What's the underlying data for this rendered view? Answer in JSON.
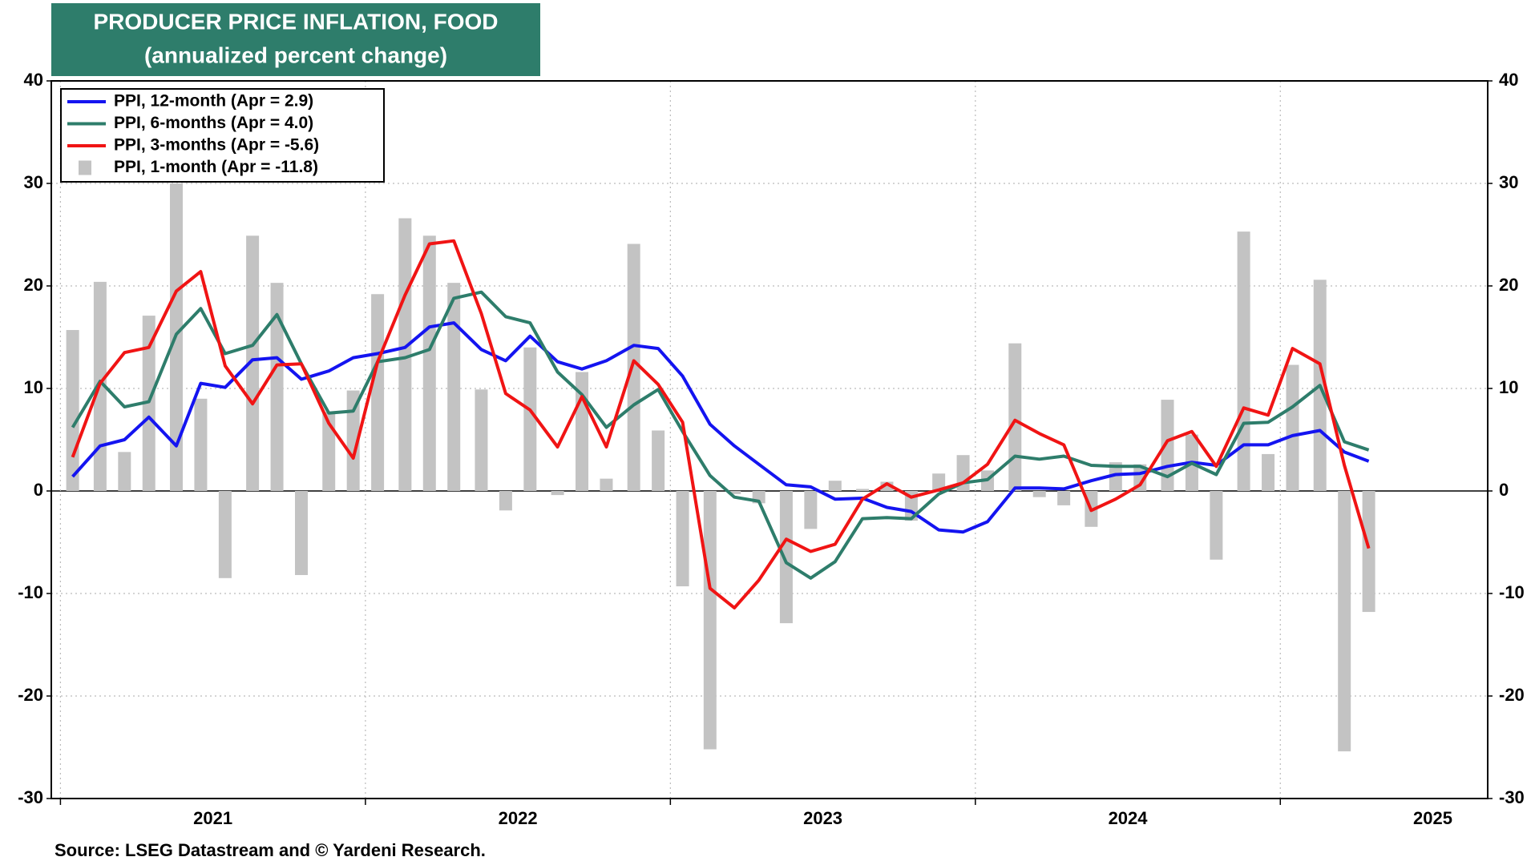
{
  "chart_data": {
    "type": "line",
    "title": "PRODUCER PRICE INFLATION, FOOD",
    "subtitle": "(annualized percent change)",
    "source": "Source: LSEG Datastream and © Yardeni Research.",
    "legend": "top-left",
    "grid": true,
    "xlim": [
      2020.97,
      2025.68
    ],
    "xticks": [
      {
        "value": 2021.5,
        "label": "2021"
      },
      {
        "value": 2022.5,
        "label": "2022"
      },
      {
        "value": 2023.5,
        "label": "2023"
      },
      {
        "value": 2024.5,
        "label": "2024"
      },
      {
        "value": 2025.5,
        "label": "2025"
      }
    ],
    "ylim": [
      -30,
      40
    ],
    "yticks": [
      40,
      30,
      20,
      10,
      0,
      -10,
      -20,
      -30
    ],
    "x": [
      2021.04,
      2021.13,
      2021.21,
      2021.29,
      2021.38,
      2021.46,
      2021.54,
      2021.63,
      2021.71,
      2021.79,
      2021.88,
      2021.96,
      2022.04,
      2022.13,
      2022.21,
      2022.29,
      2022.38,
      2022.46,
      2022.54,
      2022.63,
      2022.71,
      2022.79,
      2022.88,
      2022.96,
      2023.04,
      2023.13,
      2023.21,
      2023.29,
      2023.38,
      2023.46,
      2023.54,
      2023.63,
      2023.71,
      2023.79,
      2023.88,
      2023.96,
      2024.04,
      2024.13,
      2024.21,
      2024.29,
      2024.38,
      2024.46,
      2024.54,
      2024.63,
      2024.71,
      2024.79,
      2024.88,
      2024.96,
      2025.04,
      2025.13,
      2025.21,
      2025.29
    ],
    "series": [
      {
        "name": "PPI, 12-month (Apr = 2.9)",
        "type": "line",
        "color": "#1414f0",
        "values": [
          1.4,
          4.4,
          5.0,
          7.2,
          4.4,
          10.5,
          10.1,
          12.8,
          13.0,
          10.9,
          11.7,
          13.0,
          13.4,
          14.0,
          16.0,
          16.4,
          13.8,
          12.7,
          15.1,
          12.6,
          11.9,
          12.7,
          14.2,
          13.9,
          11.2,
          6.5,
          4.4,
          2.6,
          0.6,
          0.4,
          -0.8,
          -0.7,
          -1.6,
          -2.0,
          -3.8,
          -4.0,
          -3.0,
          0.3,
          0.3,
          0.2,
          1.0,
          1.6,
          1.7,
          2.4,
          2.8,
          2.5,
          4.5,
          4.5,
          5.4,
          5.9,
          3.8,
          2.9
        ]
      },
      {
        "name": "PPI, 6-months (Apr = 4.0)",
        "type": "line",
        "color": "#2e7d6b",
        "values": [
          6.2,
          10.7,
          8.2,
          8.7,
          15.3,
          17.8,
          13.4,
          14.2,
          17.2,
          12.4,
          7.6,
          7.8,
          12.6,
          13.0,
          13.8,
          18.8,
          19.4,
          17.0,
          16.4,
          11.6,
          9.4,
          6.2,
          8.4,
          9.9,
          5.8,
          1.5,
          -0.6,
          -1.0,
          -7.0,
          -8.5,
          -6.9,
          -2.7,
          -2.6,
          -2.7,
          -0.3,
          0.8,
          1.1,
          3.4,
          3.1,
          3.4,
          2.5,
          2.4,
          2.4,
          1.4,
          2.7,
          1.6,
          6.6,
          6.7,
          8.2,
          10.3,
          4.8,
          4.0
        ]
      },
      {
        "name": "PPI, 3-months (Apr = -5.6)",
        "type": "line",
        "color": "#f01414",
        "values": [
          3.3,
          10.5,
          13.5,
          14.0,
          19.5,
          21.4,
          12.2,
          8.5,
          12.3,
          12.4,
          6.6,
          3.2,
          12.6,
          19.1,
          24.1,
          24.4,
          17.3,
          9.5,
          7.9,
          4.3,
          9.2,
          4.3,
          12.7,
          10.4,
          6.7,
          -9.5,
          -11.4,
          -8.7,
          -4.7,
          -5.9,
          -5.2,
          -0.8,
          0.7,
          -0.6,
          0.1,
          0.8,
          2.6,
          6.9,
          5.6,
          4.5,
          -1.9,
          -0.8,
          0.6,
          4.9,
          5.8,
          2.4,
          8.1,
          7.4,
          13.9,
          12.4,
          2.5,
          -5.6
        ]
      },
      {
        "name": "PPI, 1-month (Apr = -11.8)",
        "type": "bar",
        "color": "#c3c3c3",
        "values": [
          15.7,
          20.4,
          3.8,
          17.1,
          30.0,
          9.0,
          -8.5,
          24.9,
          20.3,
          -8.2,
          7.7,
          9.8,
          19.2,
          26.6,
          24.9,
          20.3,
          9.9,
          -1.9,
          14.0,
          -0.4,
          11.6,
          1.2,
          24.1,
          5.9,
          -9.3,
          -25.2,
          -0.3,
          -1.2,
          -12.9,
          -3.7,
          1.0,
          0.2,
          0.9,
          -2.9,
          1.7,
          3.5,
          2.0,
          14.4,
          -0.6,
          -1.4,
          -3.5,
          2.8,
          2.6,
          8.9,
          5.5,
          -6.7,
          25.3,
          3.6,
          12.3,
          20.6,
          -25.4,
          -11.8
        ]
      }
    ]
  }
}
